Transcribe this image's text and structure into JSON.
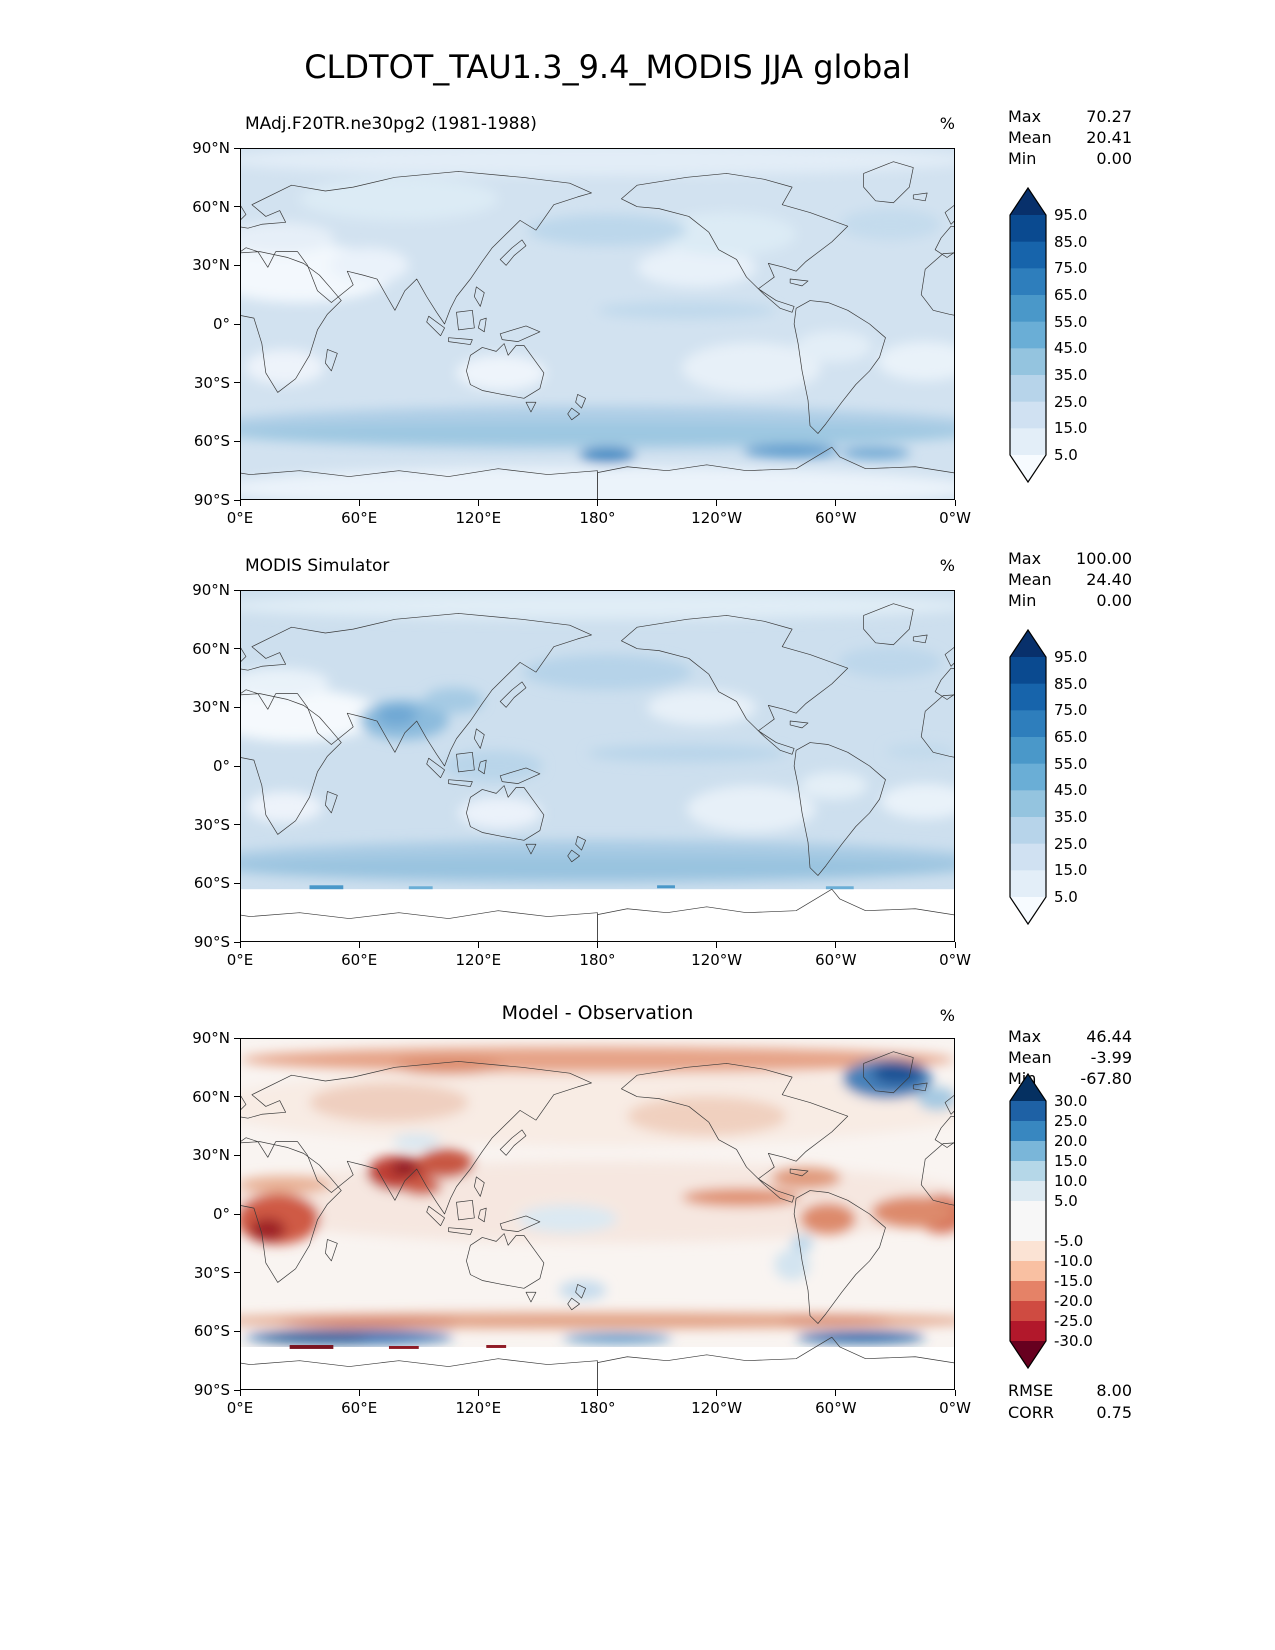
{
  "title": "CLDTOT_TAU1.3_9.4_MODIS JJA global",
  "axes": {
    "x_ticks": [
      "0°E",
      "60°E",
      "120°E",
      "180°",
      "120°W",
      "60°W",
      "0°W"
    ],
    "y_ticks": [
      "90°N",
      "60°N",
      "30°N",
      "0°",
      "30°S",
      "60°S",
      "90°S"
    ]
  },
  "panels": [
    {
      "id": "model",
      "title": "MAdj.F20TR.ne30pg2 (1981-1988)",
      "unit": "%",
      "stats": [
        {
          "label": "Max",
          "value": "70.27"
        },
        {
          "label": "Mean",
          "value": "20.41"
        },
        {
          "label": "Min",
          "value": "0.00"
        }
      ],
      "colorbar": {
        "labels": [
          "95.0",
          "85.0",
          "75.0",
          "65.0",
          "55.0",
          "45.0",
          "35.0",
          "25.0",
          "15.0",
          "5.0"
        ],
        "over": "#08306b",
        "under": "#f7fbff",
        "segments": [
          "#0a4a90",
          "#1764ab",
          "#2e7ebc",
          "#4a98c9",
          "#6aaed6",
          "#94c4df",
          "#b7d4ea",
          "#d0e1f2",
          "#e3eef8"
        ]
      }
    },
    {
      "id": "observation",
      "title": "MODIS Simulator",
      "unit": "%",
      "stats": [
        {
          "label": "Max",
          "value": "100.00"
        },
        {
          "label": "Mean",
          "value": "24.40"
        },
        {
          "label": "Min",
          "value": "0.00"
        }
      ],
      "colorbar": {
        "labels": [
          "95.0",
          "85.0",
          "75.0",
          "65.0",
          "55.0",
          "45.0",
          "35.0",
          "25.0",
          "15.0",
          "5.0"
        ],
        "over": "#08306b",
        "under": "#f7fbff",
        "segments": [
          "#0a4a90",
          "#1764ab",
          "#2e7ebc",
          "#4a98c9",
          "#6aaed6",
          "#94c4df",
          "#b7d4ea",
          "#d0e1f2",
          "#e3eef8"
        ]
      }
    },
    {
      "id": "difference",
      "title": "Model - Observation",
      "unit": "%",
      "stats": [
        {
          "label": "Max",
          "value": "46.44"
        },
        {
          "label": "Mean",
          "value": "-3.99"
        },
        {
          "label": "Min",
          "value": "-67.80"
        }
      ],
      "colorbar": {
        "labels": [
          "30.0",
          "25.0",
          "20.0",
          "15.0",
          "10.0",
          "5.0",
          "-5.0",
          "-10.0",
          "-15.0",
          "-20.0",
          "-25.0",
          "-30.0"
        ],
        "over": "#053061",
        "under": "#67001f",
        "segments": [
          "#1e61a5",
          "#3887c0",
          "#7ab6d9",
          "#b5d7e8",
          "#ddeaf2",
          "#f7f7f7",
          "#fbe3d4",
          "#f9c0a2",
          "#e58267",
          "#cf4b41",
          "#b2182b"
        ],
        "spans": [
          1,
          1,
          1,
          1,
          1,
          2,
          1,
          1,
          1,
          1,
          1
        ]
      },
      "metrics": [
        {
          "label": "RMSE",
          "value": "8.00"
        },
        {
          "label": "CORR",
          "value": "0.75"
        }
      ]
    }
  ],
  "chart_data": [
    {
      "type": "heatmap",
      "panel": "model",
      "title": "MAdj.F20TR.ne30pg2 (1981-1988)",
      "variable": "CLDTOT_TAU1.3_9.4_MODIS",
      "season": "JJA",
      "region": "global",
      "units": "%",
      "colormap": "Blues",
      "levels": [
        5,
        15,
        25,
        35,
        45,
        55,
        65,
        75,
        85,
        95
      ],
      "stats": {
        "max": 70.27,
        "mean": 20.41,
        "min": 0.0
      },
      "extent": {
        "lon_deg_east": [
          0,
          360
        ],
        "lat_deg": [
          -90,
          90
        ]
      },
      "lon_ticks": [
        "0°E",
        "60°E",
        "120°E",
        "180°",
        "120°W",
        "60°W",
        "0°W"
      ],
      "lat_ticks": [
        "90°N",
        "60°N",
        "30°N",
        "0°",
        "30°S",
        "60°S",
        "90°S"
      ]
    },
    {
      "type": "heatmap",
      "panel": "observation",
      "title": "MODIS Simulator",
      "variable": "CLDTOT_TAU1.3_9.4_MODIS",
      "season": "JJA",
      "region": "global",
      "units": "%",
      "colormap": "Blues",
      "levels": [
        5,
        15,
        25,
        35,
        45,
        55,
        65,
        75,
        85,
        95
      ],
      "stats": {
        "max": 100.0,
        "mean": 24.4,
        "min": 0.0
      },
      "extent": {
        "lon_deg_east": [
          0,
          360
        ],
        "lat_deg": [
          -90,
          90
        ]
      },
      "lon_ticks": [
        "0°E",
        "60°E",
        "120°E",
        "180°",
        "120°W",
        "60°W",
        "0°W"
      ],
      "lat_ticks": [
        "90°N",
        "60°N",
        "30°N",
        "0°",
        "30°S",
        "60°S",
        "90°S"
      ]
    },
    {
      "type": "heatmap",
      "panel": "difference",
      "title": "Model - Observation",
      "units": "%",
      "colormap": "RdBu",
      "levels": [
        -30,
        -25,
        -20,
        -15,
        -10,
        -5,
        5,
        10,
        15,
        20,
        25,
        30
      ],
      "stats": {
        "max": 46.44,
        "mean": -3.99,
        "min": -67.8
      },
      "metrics": {
        "rmse": 8.0,
        "corr": 0.75
      },
      "extent": {
        "lon_deg_east": [
          0,
          360
        ],
        "lat_deg": [
          -90,
          90
        ]
      },
      "lon_ticks": [
        "0°E",
        "60°E",
        "120°E",
        "180°",
        "120°W",
        "60°W",
        "0°W"
      ],
      "lat_ticks": [
        "90°N",
        "60°N",
        "30°N",
        "0°",
        "30°S",
        "60°S",
        "90°S"
      ]
    }
  ]
}
